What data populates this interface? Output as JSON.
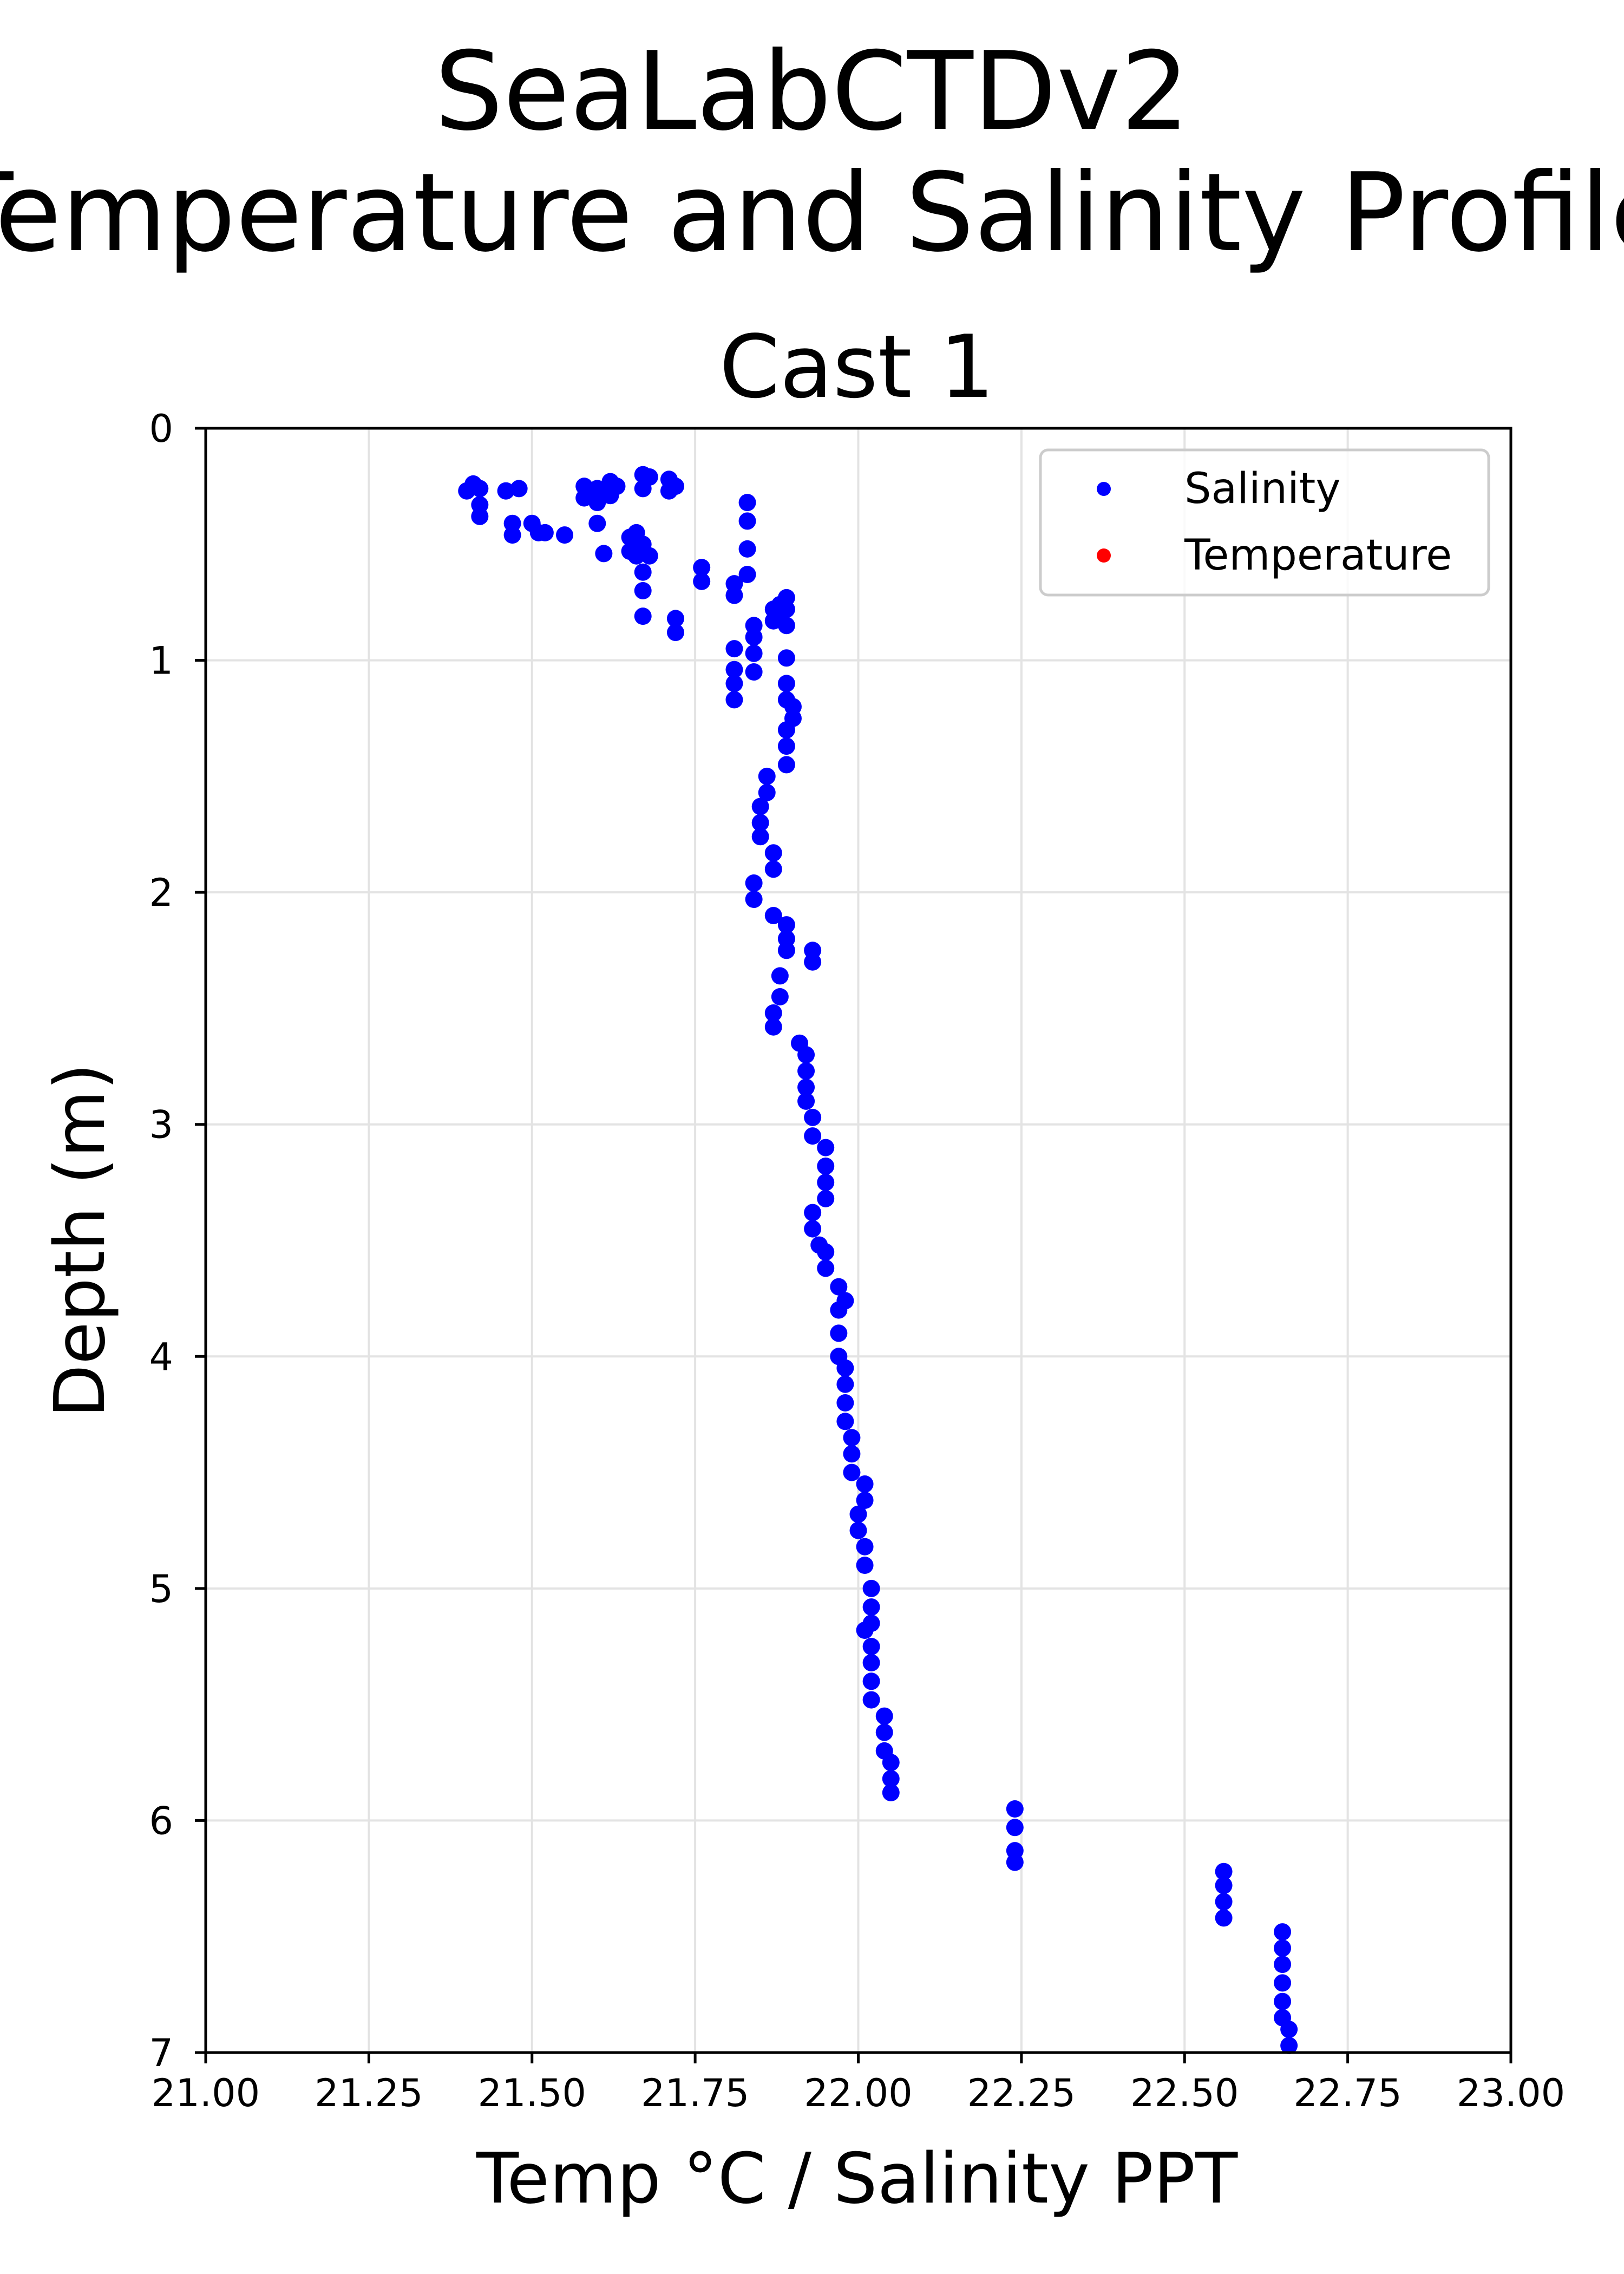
{
  "chart_data": {
    "type": "scatter",
    "suptitle": [
      "SeaLabCTDv2",
      "Temperature and Salinity Profile"
    ],
    "title": "Cast 1",
    "xlabel": "Temp °C / Salinity PPT",
    "ylabel": "Depth (m)",
    "xlim": [
      21.0,
      23.0
    ],
    "ylim": [
      7,
      0
    ],
    "y_inverted": true,
    "grid": true,
    "legend_position": "top-right",
    "xticks": [
      "21.00",
      "21.25",
      "21.50",
      "21.75",
      "22.00",
      "22.25",
      "22.50",
      "22.75",
      "23.00"
    ],
    "yticks": [
      "0",
      "1",
      "2",
      "3",
      "4",
      "5",
      "6",
      "7"
    ],
    "series": [
      {
        "name": "Salinity",
        "color": "#0000ff",
        "points": [
          [
            21.4,
            0.27
          ],
          [
            21.41,
            0.24
          ],
          [
            21.42,
            0.26
          ],
          [
            21.42,
            0.33
          ],
          [
            21.42,
            0.38
          ],
          [
            21.46,
            0.27
          ],
          [
            21.47,
            0.41
          ],
          [
            21.47,
            0.46
          ],
          [
            21.48,
            0.26
          ],
          [
            21.5,
            0.41
          ],
          [
            21.51,
            0.45
          ],
          [
            21.52,
            0.45
          ],
          [
            21.55,
            0.46
          ],
          [
            21.58,
            0.25
          ],
          [
            21.58,
            0.3
          ],
          [
            21.59,
            0.27
          ],
          [
            21.6,
            0.26
          ],
          [
            21.6,
            0.32
          ],
          [
            21.6,
            0.41
          ],
          [
            21.61,
            0.54
          ],
          [
            21.62,
            0.23
          ],
          [
            21.62,
            0.29
          ],
          [
            21.63,
            0.25
          ],
          [
            21.65,
            0.47
          ],
          [
            21.65,
            0.53
          ],
          [
            21.66,
            0.45
          ],
          [
            21.66,
            0.55
          ],
          [
            21.67,
            0.2
          ],
          [
            21.67,
            0.26
          ],
          [
            21.67,
            0.5
          ],
          [
            21.67,
            0.62
          ],
          [
            21.67,
            0.7
          ],
          [
            21.67,
            0.81
          ],
          [
            21.68,
            0.21
          ],
          [
            21.68,
            0.55
          ],
          [
            21.71,
            0.22
          ],
          [
            21.71,
            0.27
          ],
          [
            21.72,
            0.25
          ],
          [
            21.72,
            0.82
          ],
          [
            21.72,
            0.88
          ],
          [
            21.76,
            0.6
          ],
          [
            21.76,
            0.66
          ],
          [
            21.81,
            0.67
          ],
          [
            21.81,
            0.72
          ],
          [
            21.81,
            0.95
          ],
          [
            21.81,
            1.04
          ],
          [
            21.81,
            1.1
          ],
          [
            21.81,
            1.17
          ],
          [
            21.83,
            0.32
          ],
          [
            21.83,
            0.4
          ],
          [
            21.83,
            0.52
          ],
          [
            21.83,
            0.63
          ],
          [
            21.84,
            0.85
          ],
          [
            21.84,
            0.9
          ],
          [
            21.84,
            0.97
          ],
          [
            21.84,
            1.05
          ],
          [
            21.84,
            1.96
          ],
          [
            21.84,
            2.03
          ],
          [
            21.85,
            1.63
          ],
          [
            21.85,
            1.7
          ],
          [
            21.85,
            1.76
          ],
          [
            21.86,
            1.5
          ],
          [
            21.86,
            1.57
          ],
          [
            21.87,
            0.78
          ],
          [
            21.87,
            0.83
          ],
          [
            21.87,
            1.83
          ],
          [
            21.87,
            1.9
          ],
          [
            21.87,
            2.1
          ],
          [
            21.87,
            2.52
          ],
          [
            21.87,
            2.58
          ],
          [
            21.88,
            0.76
          ],
          [
            21.88,
            0.81
          ],
          [
            21.88,
            2.36
          ],
          [
            21.88,
            2.45
          ],
          [
            21.89,
            0.73
          ],
          [
            21.89,
            0.78
          ],
          [
            21.89,
            0.85
          ],
          [
            21.89,
            0.99
          ],
          [
            21.89,
            1.1
          ],
          [
            21.89,
            1.17
          ],
          [
            21.89,
            1.3
          ],
          [
            21.89,
            1.37
          ],
          [
            21.89,
            1.45
          ],
          [
            21.89,
            2.14
          ],
          [
            21.89,
            2.2
          ],
          [
            21.89,
            2.25
          ],
          [
            21.9,
            1.2
          ],
          [
            21.9,
            1.25
          ],
          [
            21.91,
            2.65
          ],
          [
            21.92,
            2.7
          ],
          [
            21.92,
            2.77
          ],
          [
            21.92,
            2.84
          ],
          [
            21.92,
            2.9
          ],
          [
            21.93,
            2.25
          ],
          [
            21.93,
            2.3
          ],
          [
            21.93,
            2.97
          ],
          [
            21.93,
            3.05
          ],
          [
            21.93,
            3.38
          ],
          [
            21.93,
            3.45
          ],
          [
            21.94,
            3.52
          ],
          [
            21.95,
            3.1
          ],
          [
            21.95,
            3.18
          ],
          [
            21.95,
            3.25
          ],
          [
            21.95,
            3.32
          ],
          [
            21.95,
            3.55
          ],
          [
            21.95,
            3.62
          ],
          [
            21.97,
            3.7
          ],
          [
            21.97,
            3.8
          ],
          [
            21.97,
            3.9
          ],
          [
            21.97,
            4.0
          ],
          [
            21.98,
            3.76
          ],
          [
            21.98,
            4.05
          ],
          [
            21.98,
            4.12
          ],
          [
            21.98,
            4.2
          ],
          [
            21.98,
            4.28
          ],
          [
            21.99,
            4.35
          ],
          [
            21.99,
            4.42
          ],
          [
            21.99,
            4.5
          ],
          [
            22.0,
            4.68
          ],
          [
            22.0,
            4.75
          ],
          [
            22.01,
            4.55
          ],
          [
            22.01,
            4.62
          ],
          [
            22.01,
            4.82
          ],
          [
            22.01,
            4.9
          ],
          [
            22.01,
            5.18
          ],
          [
            22.02,
            5.0
          ],
          [
            22.02,
            5.08
          ],
          [
            22.02,
            5.15
          ],
          [
            22.02,
            5.25
          ],
          [
            22.02,
            5.32
          ],
          [
            22.02,
            5.4
          ],
          [
            22.02,
            5.48
          ],
          [
            22.04,
            5.55
          ],
          [
            22.04,
            5.62
          ],
          [
            22.04,
            5.7
          ],
          [
            22.05,
            5.75
          ],
          [
            22.05,
            5.82
          ],
          [
            22.05,
            5.88
          ],
          [
            22.24,
            5.95
          ],
          [
            22.24,
            6.03
          ],
          [
            22.24,
            6.13
          ],
          [
            22.24,
            6.18
          ],
          [
            22.56,
            6.22
          ],
          [
            22.56,
            6.28
          ],
          [
            22.56,
            6.35
          ],
          [
            22.56,
            6.42
          ],
          [
            22.65,
            6.48
          ],
          [
            22.65,
            6.55
          ],
          [
            22.65,
            6.62
          ],
          [
            22.65,
            6.7
          ],
          [
            22.65,
            6.78
          ],
          [
            22.65,
            6.85
          ],
          [
            22.66,
            6.9
          ],
          [
            22.66,
            6.97
          ]
        ]
      },
      {
        "name": "Temperature",
        "color": "#ff0000",
        "points": []
      }
    ]
  }
}
